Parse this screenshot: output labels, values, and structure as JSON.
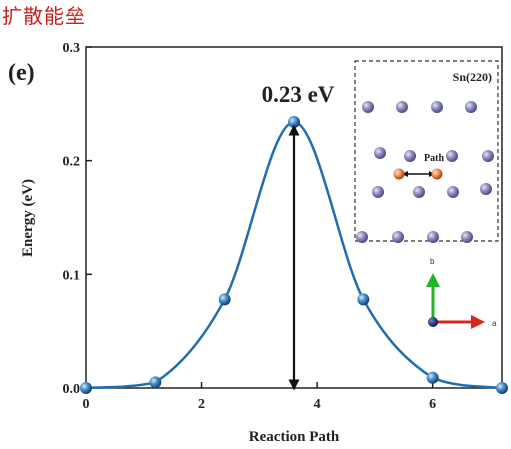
{
  "header": {
    "title": "扩散能垒"
  },
  "chart_data": {
    "type": "line",
    "panel_label": "(e)",
    "xlabel": "Reaction Path",
    "ylabel": "Energy (eV)",
    "xlim": [
      0,
      7.2
    ],
    "ylim": [
      0,
      0.3
    ],
    "x_ticks": [
      0,
      2,
      4,
      6
    ],
    "y_ticks": [
      0.0,
      0.1,
      0.2,
      0.3
    ],
    "x_tick_labels": [
      "0",
      "2",
      "4",
      "6"
    ],
    "y_tick_labels": [
      "0.0",
      "0.1",
      "0.2",
      "0.3"
    ],
    "series": [
      {
        "x": [
          0,
          1.2,
          2.4,
          3.6,
          4.8,
          6.0,
          7.2
        ],
        "y": [
          0.0,
          0.005,
          0.078,
          0.234,
          0.078,
          0.009,
          0.0
        ]
      }
    ],
    "color": "#1f6cb0",
    "annotation": {
      "text": "0.23 eV",
      "x": 3.6,
      "y_from": 0.0,
      "y_to": 0.234
    },
    "grid": false,
    "inset": {
      "label": "Sn(220)",
      "path_label": "Path",
      "axis_labels": {
        "b": "b",
        "a": "a"
      }
    }
  }
}
